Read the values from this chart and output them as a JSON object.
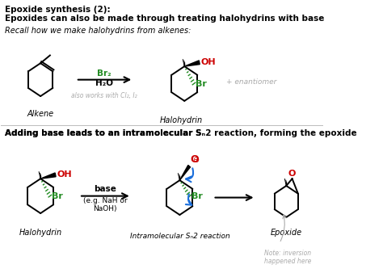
{
  "title1": "Epoxide synthesis (2):",
  "title2": "Epoxides can also be made through treating halohydrins with base",
  "subtitle": "Recall how we make halohydrins from alkenes:",
  "label_alkene": "Alkene",
  "label_halohydrin1": "Halohydrin",
  "label_halohydrin2": "Halohydrin",
  "label_epoxide": "Epoxide",
  "reagent1_top": "Br₂",
  "reagent1_bot": "H₂O",
  "also_works": "also works with Cl₂, I₂",
  "enantiomer": "+ enantiomer",
  "note": "Note: inversion\nhappened here",
  "bg_color": "#ffffff",
  "black": "#000000",
  "green": "#228B22",
  "red": "#cc0000",
  "gray": "#aaaaaa",
  "blue": "#1a6edb"
}
